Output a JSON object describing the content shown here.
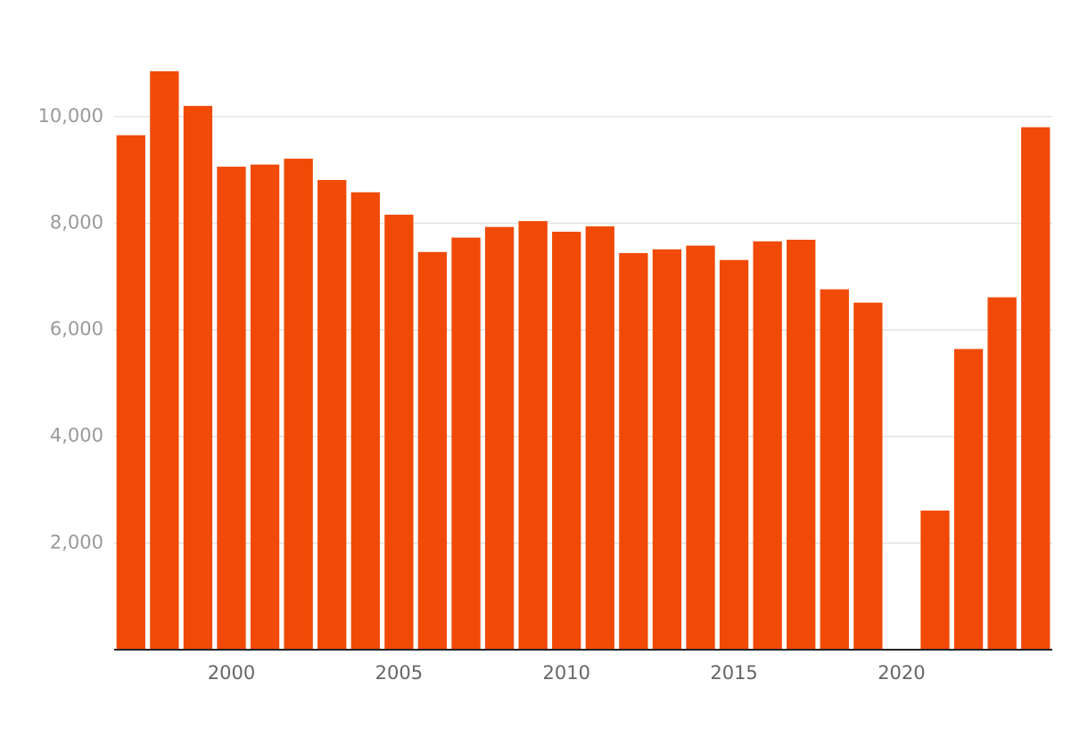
{
  "chart_data": {
    "type": "bar",
    "x": [
      1997,
      1998,
      1999,
      2000,
      2001,
      2002,
      2003,
      2004,
      2005,
      2006,
      2007,
      2008,
      2009,
      2010,
      2011,
      2012,
      2013,
      2014,
      2015,
      2016,
      2017,
      2018,
      2019,
      2020,
      2021,
      2022,
      2023,
      2024
    ],
    "values": [
      9650,
      10850,
      10200,
      9060,
      9100,
      9210,
      8810,
      8580,
      8160,
      7460,
      7730,
      7930,
      8040,
      7840,
      7940,
      7440,
      7510,
      7580,
      7310,
      7660,
      7690,
      6760,
      6510,
      0,
      2610,
      5640,
      6610,
      9800
    ],
    "color": "#f04a06",
    "xlim": [
      1996.5,
      2024.5
    ],
    "xticks": [
      2000,
      2005,
      2010,
      2015,
      2020
    ],
    "ylim": [
      0,
      11000
    ],
    "yticks": [
      {
        "value": 2000,
        "label": "2,000"
      },
      {
        "value": 4000,
        "label": "4,000"
      },
      {
        "value": 6000,
        "label": "6,000"
      },
      {
        "value": 8000,
        "label": "8,000"
      },
      {
        "value": 10000,
        "label": "10,000"
      }
    ],
    "grid": true
  }
}
